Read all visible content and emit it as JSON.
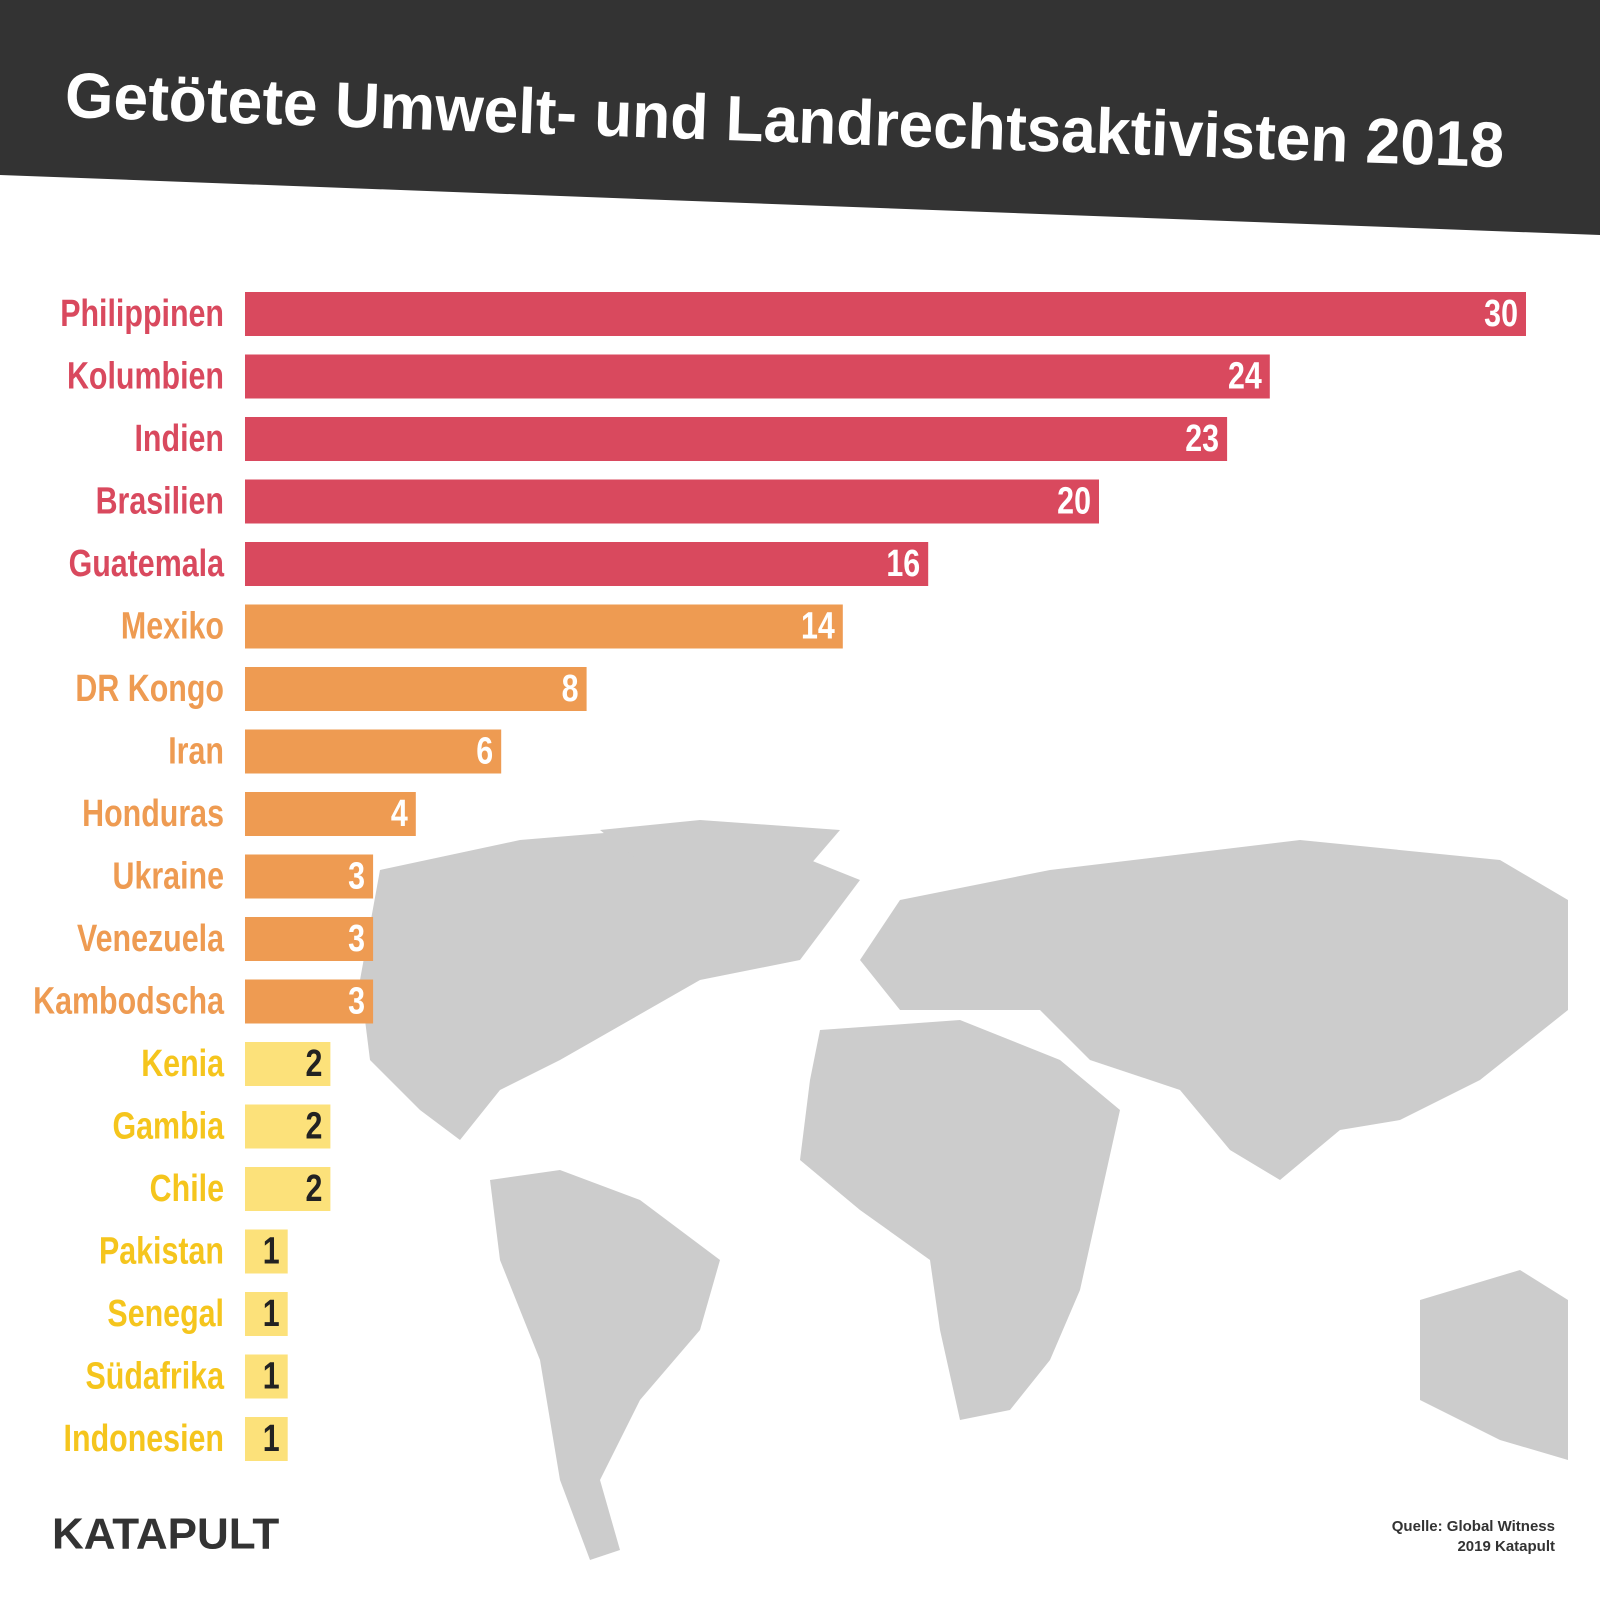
{
  "chart_data": {
    "type": "hbar",
    "title": "Getötete Umwelt- und Landrechtsaktivisten 2018",
    "categories": [
      "Philippinen",
      "Kolumbien",
      "Indien",
      "Brasilien",
      "Guatemala",
      "Mexiko",
      "DR Kongo",
      "Iran",
      "Honduras",
      "Ukraine",
      "Venezuela",
      "Kambodscha",
      "Kenia",
      "Gambia",
      "Chile",
      "Pakistan",
      "Senegal",
      "Südafrika",
      "Indonesien"
    ],
    "values": [
      30,
      24,
      23,
      20,
      16,
      14,
      8,
      6,
      4,
      3,
      3,
      3,
      2,
      2,
      2,
      1,
      1,
      1,
      1
    ],
    "colors": [
      "#d9495e",
      "#d9495e",
      "#d9495e",
      "#d9495e",
      "#d9495e",
      "#ee9b52",
      "#ee9b52",
      "#ee9b52",
      "#ee9b52",
      "#ee9b52",
      "#ee9b52",
      "#ee9b52",
      "#fce17a",
      "#fce17a",
      "#fce17a",
      "#fce17a",
      "#fce17a",
      "#fce17a",
      "#fce17a"
    ],
    "label_colors": [
      "#d9495e",
      "#d9495e",
      "#d9495e",
      "#d9495e",
      "#d9495e",
      "#ee9b52",
      "#ee9b52",
      "#ee9b52",
      "#ee9b52",
      "#ee9b52",
      "#ee9b52",
      "#ee9b52",
      "#f5c51d",
      "#f5c51d",
      "#f5c51d",
      "#f5c51d",
      "#f5c51d",
      "#f5c51d",
      "#f5c51d"
    ],
    "xlim": [
      0,
      30
    ],
    "source": "Quelle: Global Witness",
    "credit": "2019 Katapult",
    "logo": "KATAPULT"
  }
}
